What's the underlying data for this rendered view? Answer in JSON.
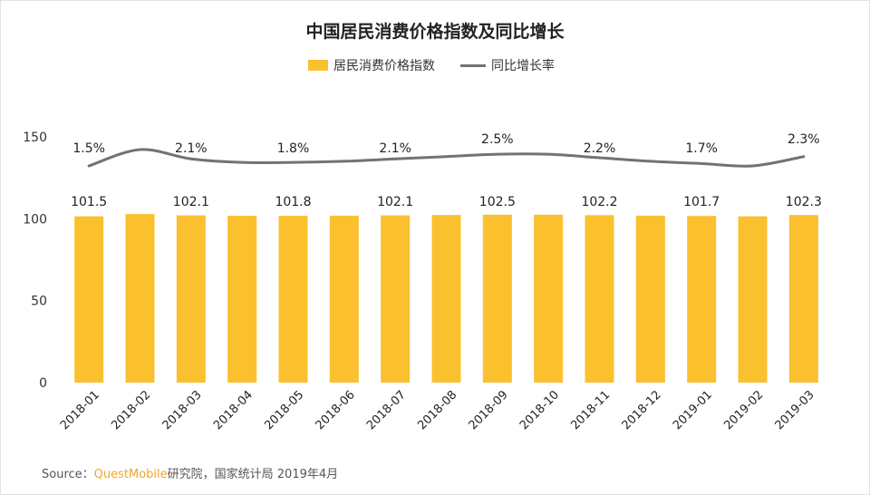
{
  "chart_data": {
    "type": "bar",
    "title": "中国居民消费价格指数及同比增长",
    "categories": [
      "2018-01",
      "2018-02",
      "2018-03",
      "2018-04",
      "2018-05",
      "2018-06",
      "2018-07",
      "2018-08",
      "2018-09",
      "2018-10",
      "2018-11",
      "2018-12",
      "2019-01",
      "2019-02",
      "2019-03"
    ],
    "series": [
      {
        "name": "居民消费价格指数",
        "type": "bar",
        "color": "#FBC02D",
        "values": [
          101.5,
          102.9,
          102.1,
          101.8,
          101.8,
          101.9,
          102.1,
          102.3,
          102.5,
          102.5,
          102.2,
          101.9,
          101.7,
          101.5,
          102.3
        ],
        "labels": [
          "101.5",
          "",
          "102.1",
          "",
          "101.8",
          "",
          "102.1",
          "",
          "102.5",
          "",
          "102.2",
          "",
          "101.7",
          "",
          "102.3"
        ]
      },
      {
        "name": "同比增长率",
        "type": "line",
        "color": "#767171",
        "values": [
          1.5,
          2.9,
          2.1,
          1.8,
          1.8,
          1.9,
          2.1,
          2.3,
          2.5,
          2.5,
          2.2,
          1.9,
          1.7,
          1.5,
          2.3
        ],
        "labels": [
          "1.5%",
          "",
          "2.1%",
          "",
          "1.8%",
          "",
          "2.1%",
          "",
          "2.5%",
          "",
          "2.2%",
          "",
          "1.7%",
          "",
          "2.3%"
        ]
      }
    ],
    "yticks": [
      "0",
      "50",
      "100",
      "150"
    ],
    "ylim": [
      0,
      150
    ],
    "legend_position": "top"
  },
  "source": {
    "prefix": "Source：",
    "brand": "QuestMobile",
    "suffix": "研究院，国家统计局 2019年4月"
  }
}
